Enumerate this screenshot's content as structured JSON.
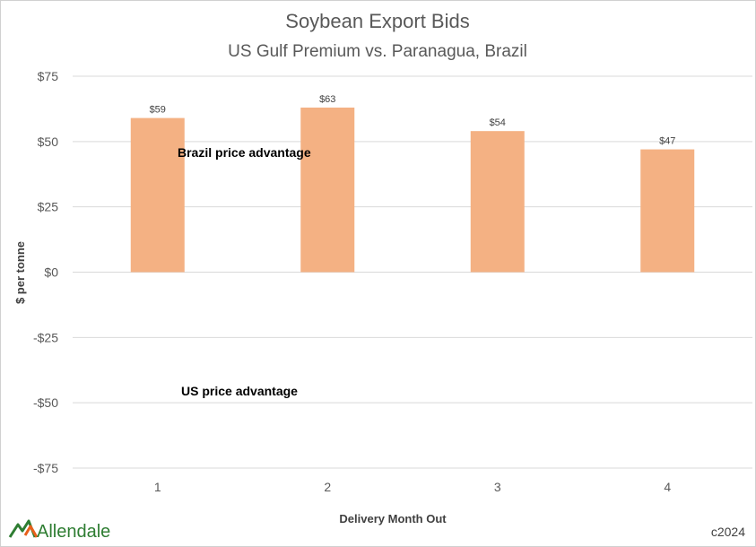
{
  "chart_data": {
    "type": "bar",
    "title": "Soybean Export Bids",
    "subtitle": "US Gulf Premium vs. Paranagua, Brazil",
    "xlabel": "Delivery Month Out",
    "ylabel": "$ per tonne",
    "categories": [
      "1",
      "2",
      "3",
      "4"
    ],
    "values": [
      59,
      63,
      54,
      47
    ],
    "data_labels": [
      "$59",
      "$63",
      "$54",
      "$47"
    ],
    "ylim": [
      -75,
      75
    ],
    "yticks": [
      75,
      50,
      25,
      0,
      -25,
      -50,
      -75
    ],
    "ytick_labels": [
      "$75",
      "$50",
      "$25",
      "$0",
      "-$25",
      "-$50",
      "-$75"
    ],
    "grid": true,
    "bar_color": "#F4B183",
    "annotations": [
      "Brazil price advantage",
      "US price advantage"
    ]
  },
  "branding": {
    "logo_text": "Allendale",
    "logo_icon": "allendale-logo-icon",
    "copyright": "c2024"
  }
}
